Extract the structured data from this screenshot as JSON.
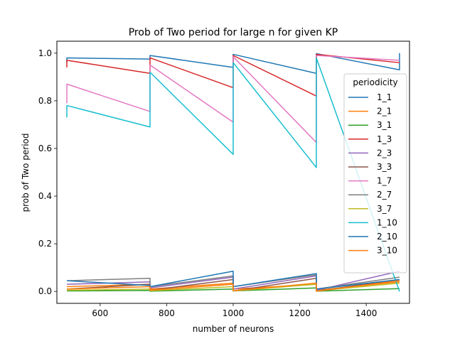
{
  "chart_data": {
    "type": "line",
    "title": "Prob of Two period for large n for given KP",
    "xlabel": "number of neurons",
    "ylabel": "prob of Two period",
    "xlim": [
      470,
      1530
    ],
    "ylim": [
      -0.05,
      1.05
    ],
    "xticks": [
      600,
      800,
      1000,
      1200,
      1400
    ],
    "xtick_labels": [
      "600",
      "800",
      "1000",
      "1200",
      "1400"
    ],
    "yticks": [
      0.0,
      0.2,
      0.4,
      0.6,
      0.8,
      1.0
    ],
    "ytick_labels": [
      "0.0",
      "0.2",
      "0.4",
      "0.6",
      "0.8",
      "1.0"
    ],
    "grid": false,
    "legend": {
      "title": "periodicity",
      "placement": "right"
    },
    "series": [
      {
        "name": "1_1",
        "color": "#1f77b4",
        "x": [
          500,
          500,
          750,
          750,
          1000,
          1000,
          1250,
          1250,
          1500,
          1500
        ],
        "y": [
          0.96,
          0.98,
          0.975,
          0.99,
          0.94,
          0.995,
          0.915,
          0.998,
          0.93,
          1.0
        ]
      },
      {
        "name": "2_1",
        "color": "#ff7f0e",
        "x": [
          500,
          750,
          750,
          1000,
          1000,
          1250,
          1250,
          1500
        ],
        "y": [
          0.02,
          0.03,
          0.01,
          0.035,
          0.01,
          0.03,
          0.005,
          0.04
        ]
      },
      {
        "name": "3_1",
        "color": "#2ca02c",
        "x": [
          500,
          750,
          750,
          1000,
          1000,
          1250,
          1250,
          1500
        ],
        "y": [
          0.002,
          0.004,
          0.001,
          0.01,
          0.002,
          0.015,
          0.001,
          0.012
        ]
      },
      {
        "name": "1_3",
        "color": "#d62728",
        "x": [
          500,
          500,
          750,
          750,
          1000,
          1000,
          1250,
          1250,
          1500
        ],
        "y": [
          0.94,
          0.97,
          0.915,
          0.98,
          0.855,
          0.99,
          0.82,
          0.995,
          0.96
        ]
      },
      {
        "name": "2_3",
        "color": "#9467bd",
        "x": [
          500,
          750,
          750,
          1000,
          1000,
          1250,
          1250,
          1500
        ],
        "y": [
          0.03,
          0.04,
          0.015,
          0.06,
          0.01,
          0.065,
          0.005,
          0.085
        ]
      },
      {
        "name": "3_3",
        "color": "#8c564b",
        "x": [
          500,
          750,
          750,
          1000,
          1000,
          1250,
          1250,
          1500
        ],
        "y": [
          0.01,
          0.03,
          0.005,
          0.05,
          0.002,
          0.055,
          0.002,
          0.05
        ]
      },
      {
        "name": "1_7",
        "color": "#e377c2",
        "x": [
          500,
          500,
          750,
          750,
          1000,
          1000,
          1250,
          1250,
          1500
        ],
        "y": [
          0.79,
          0.87,
          0.755,
          0.95,
          0.71,
          0.985,
          0.625,
          0.99,
          0.97
        ]
      },
      {
        "name": "2_7",
        "color": "#7f7f7f",
        "x": [
          500,
          750,
          750,
          1000,
          1000,
          1250,
          1250,
          1500
        ],
        "y": [
          0.045,
          0.055,
          0.02,
          0.065,
          0.02,
          0.07,
          0.01,
          0.06
        ]
      },
      {
        "name": "3_7",
        "color": "#bcbd22",
        "x": [
          500,
          750,
          750,
          1000,
          1000,
          1250,
          1250,
          1500
        ],
        "y": [
          0.005,
          0.01,
          0.003,
          0.02,
          0.002,
          0.03,
          0.002,
          0.035
        ]
      },
      {
        "name": "1_10",
        "color": "#17becf",
        "x": [
          500,
          500,
          750,
          750,
          1000,
          1000,
          1250,
          1250,
          1500
        ],
        "y": [
          0.73,
          0.78,
          0.69,
          0.92,
          0.575,
          0.96,
          0.52,
          0.98,
          0.0
        ]
      },
      {
        "name": "2_10",
        "color": "#1f77b4",
        "x": [
          500,
          750,
          750,
          1000,
          1000,
          1250,
          1250,
          1500
        ],
        "y": [
          0.045,
          0.025,
          0.02,
          0.085,
          0.02,
          0.075,
          0.01,
          0.05
        ]
      },
      {
        "name": "3_10",
        "color": "#ff7f0e",
        "x": [
          500,
          750,
          750,
          1000,
          1000,
          1250,
          1250,
          1500
        ],
        "y": [
          0.01,
          0.02,
          0.005,
          0.03,
          0.003,
          0.035,
          0.001,
          0.045
        ]
      }
    ]
  }
}
